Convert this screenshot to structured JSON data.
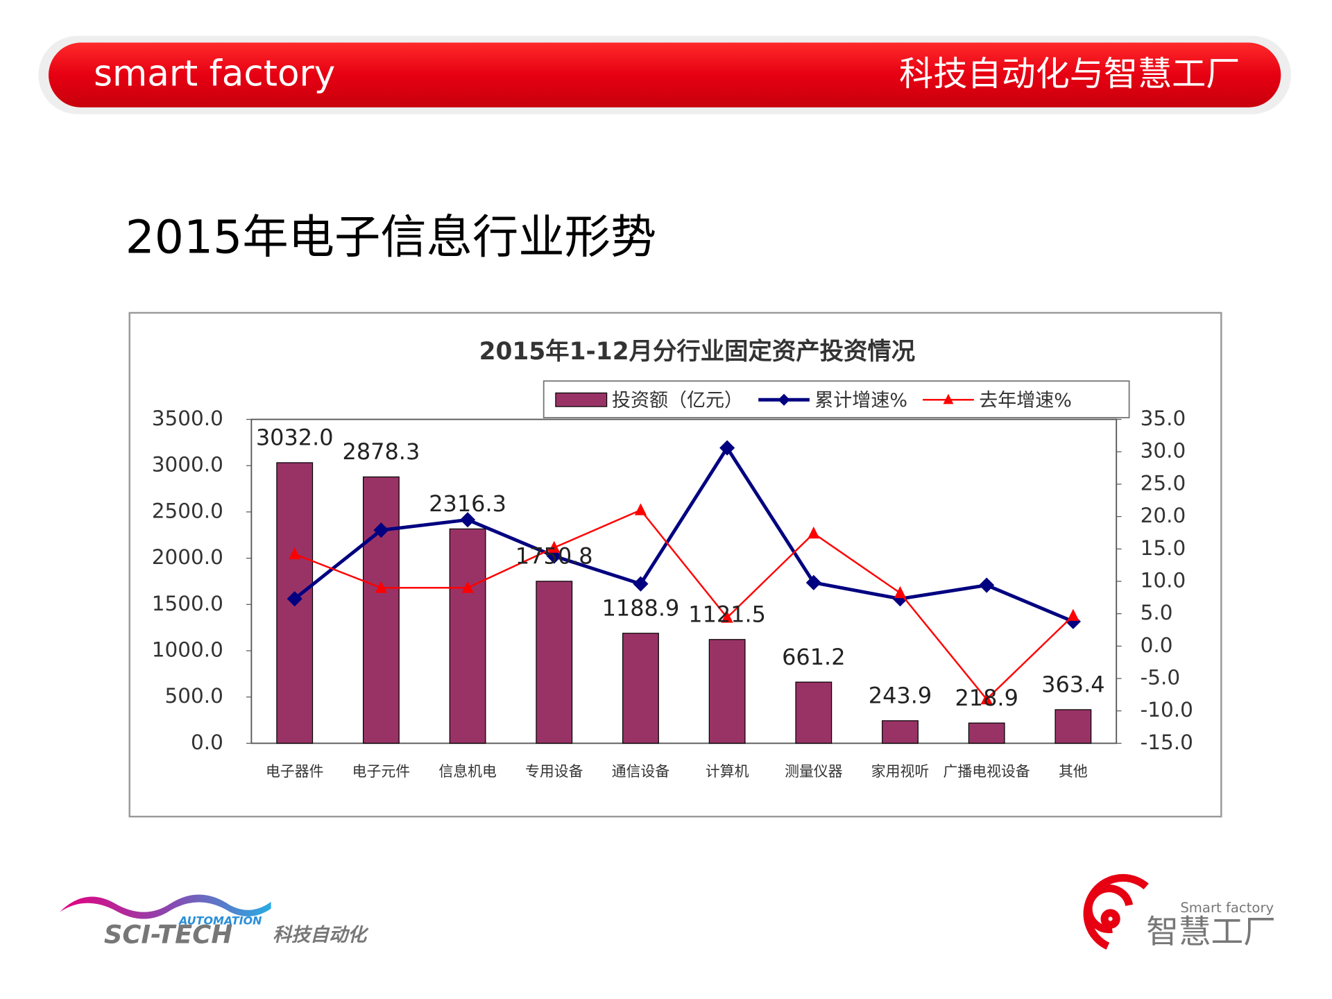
{
  "header": {
    "left": "smart factory",
    "right": "科技自动化与智慧工厂"
  },
  "slide_title": "2015年电子信息行业形势",
  "logos": {
    "left_small": "AUTOMATION",
    "left_main": "SCI-TECH",
    "left_cn": "科技自动化",
    "right_en": "Smart factory",
    "right_cn": "智慧工厂"
  },
  "chart_data": {
    "type": "bar",
    "title": "2015年1-12月分行业固定资产投资情况",
    "categories": [
      "电子器件",
      "电子元件",
      "信息机电",
      "专用设备",
      "通信设备",
      "计算机",
      "测量仪器",
      "家用视听",
      "广播电视设备",
      "其他"
    ],
    "series": [
      {
        "name": "投资额（亿元）",
        "type": "bar",
        "color": "#993366",
        "values": [
          3032.0,
          2878.3,
          2316.3,
          1750.8,
          1188.9,
          1121.5,
          661.2,
          243.9,
          218.9,
          363.4
        ],
        "value_labels": [
          "3032.0",
          "2878.3",
          "2316.3",
          "1750.8",
          "1188.9",
          "1121.5",
          "661.2",
          "243.9",
          "218.9",
          "363.4"
        ]
      },
      {
        "name": "累计增速%",
        "type": "line",
        "axis": "y2",
        "marker": "diamond",
        "color": "#000080",
        "values": [
          7.3,
          17.9,
          19.5,
          13.9,
          9.6,
          30.6,
          9.8,
          7.3,
          9.4,
          3.8
        ]
      },
      {
        "name": "去年增速%",
        "type": "line",
        "axis": "y2",
        "marker": "triangle",
        "color": "#ff0000",
        "values": [
          14.2,
          9.0,
          9.0,
          15.2,
          21.0,
          4.4,
          17.4,
          8.2,
          -8.2,
          4.7
        ]
      }
    ],
    "ylim": [
      0,
      3500
    ],
    "yticks": [
      {
        "value": 0,
        "label": "0.0"
      },
      {
        "value": 500,
        "label": "500.0"
      },
      {
        "value": 1000,
        "label": "1000.0"
      },
      {
        "value": 1500,
        "label": "1500.0"
      },
      {
        "value": 2000,
        "label": "2000.0"
      },
      {
        "value": 2500,
        "label": "2500.0"
      },
      {
        "value": 3000,
        "label": "3000.0"
      },
      {
        "value": 3500,
        "label": "3500.0"
      }
    ],
    "y2lim": [
      -15,
      35
    ],
    "y2ticks": [
      {
        "value": -15,
        "label": "-15.0"
      },
      {
        "value": -10,
        "label": "-10.0"
      },
      {
        "value": -5,
        "label": "-5.0"
      },
      {
        "value": 0,
        "label": "0.0"
      },
      {
        "value": 5,
        "label": "5.0"
      },
      {
        "value": 10,
        "label": "10.0"
      },
      {
        "value": 15,
        "label": "15.0"
      },
      {
        "value": 20,
        "label": "20.0"
      },
      {
        "value": 25,
        "label": "25.0"
      },
      {
        "value": 30,
        "label": "30.0"
      },
      {
        "value": 35,
        "label": "35.0"
      }
    ],
    "grid": false,
    "legend": "top-right"
  }
}
